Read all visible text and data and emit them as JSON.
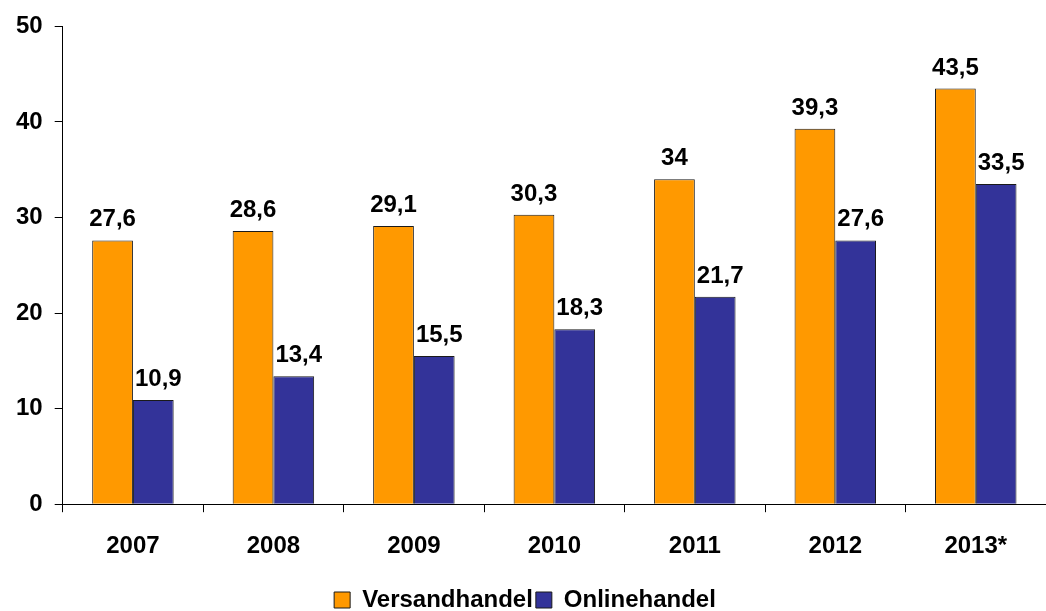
{
  "chart_data": {
    "type": "bar",
    "categories": [
      "2007",
      "2008",
      "2009",
      "2010",
      "2011",
      "2012",
      "2013*"
    ],
    "series": [
      {
        "name": "Versandhandel",
        "color": "#ff9900",
        "values": [
          27.6,
          28.6,
          29.1,
          30.3,
          34,
          39.3,
          43.5
        ],
        "value_labels": [
          "27,6",
          "28,6",
          "29,1",
          "30,3",
          "34",
          "39,3",
          "43,5"
        ]
      },
      {
        "name": "Onlinehandel",
        "color": "#333399",
        "values": [
          10.9,
          13.4,
          15.5,
          18.3,
          21.7,
          27.6,
          33.5
        ],
        "value_labels": [
          "10,9",
          "13,4",
          "15,5",
          "18,3",
          "21,7",
          "27,6",
          "33,5"
        ]
      }
    ],
    "ylim": [
      0,
      50
    ],
    "yticks": [
      0,
      10,
      20,
      30,
      40,
      50
    ],
    "legend": "bottom"
  }
}
